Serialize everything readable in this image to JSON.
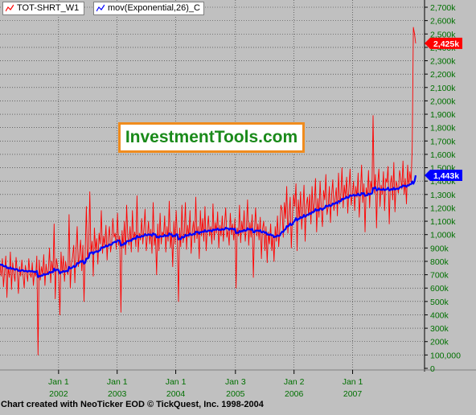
{
  "legend": [
    {
      "label": "TOT-SHRT_W1",
      "color": "#ff0000"
    },
    {
      "label": "mov(Exponential,26)_C",
      "color": "#0000ff"
    }
  ],
  "watermark": "InvestmentTools.com",
  "credit": "Chart created with NeoTicker EOD © TickQuest, Inc. 1998-2004",
  "chart_data": {
    "type": "line",
    "ylim": [
      0,
      2800000
    ],
    "y_tick_labels": [
      "0",
      "100,000",
      "200k",
      "300k",
      "400k",
      "500k",
      "600k",
      "700k",
      "800k",
      "900k",
      "1,000k",
      "1,100k",
      "1,200k",
      "1,300k",
      "1,400k",
      "1,500k",
      "1,600k",
      "1,700k",
      "1,800k",
      "1,900k",
      "2,000k",
      "2,100k",
      "2,200k",
      "2,300k",
      "2,400k",
      "2,500k",
      "2,600k",
      "2,700k"
    ],
    "y_tick_values": [
      0,
      100000,
      200000,
      300000,
      400000,
      500000,
      600000,
      700000,
      800000,
      900000,
      1000000,
      1100000,
      1200000,
      1300000,
      1400000,
      1500000,
      1600000,
      1700000,
      1800000,
      1900000,
      2000000,
      2100000,
      2200000,
      2300000,
      2400000,
      2500000,
      2600000,
      2700000
    ],
    "x_ticks": [
      {
        "month": "Jan 1",
        "year": "2002",
        "week": 52
      },
      {
        "month": "Jan 1",
        "year": "2003",
        "week": 104
      },
      {
        "month": "Jan 1",
        "year": "2004",
        "week": 156
      },
      {
        "month": "Jan 3",
        "year": "2005",
        "week": 209
      },
      {
        "month": "Jan 2",
        "year": "2006",
        "week": 261
      },
      {
        "month": "Jan 1",
        "year": "2007",
        "week": 313
      }
    ],
    "x_week_range": [
      0,
      369
    ],
    "series": [
      {
        "name": "TOT-SHRT_W1",
        "color": "#ff0000",
        "weekly_values": [
          780000,
          690000,
          820000,
          610000,
          720000,
          840000,
          530000,
          760000,
          680000,
          870000,
          590000,
          790000,
          710000,
          650000,
          830000,
          720000,
          560000,
          760000,
          690000,
          810000,
          700000,
          600000,
          770000,
          720000,
          650000,
          820000,
          710000,
          680000,
          790000,
          620000,
          730000,
          690000,
          840000,
          100000,
          810000,
          660000,
          760000,
          700000,
          850000,
          620000,
          780000,
          700000,
          730000,
          900000,
          640000,
          800000,
          710000,
          1080000,
          520000,
          820000,
          760000,
          690000,
          400000,
          870000,
          710000,
          840000,
          650000,
          800000,
          730000,
          700000,
          1150000,
          600000,
          780000,
          830000,
          920000,
          640000,
          880000,
          1060000,
          760000,
          850000,
          960000,
          730000,
          920000,
          500000,
          880000,
          1210000,
          820000,
          900000,
          1320000,
          860000,
          950000,
          690000,
          1050000,
          880000,
          970000,
          780000,
          1010000,
          930000,
          1180000,
          860000,
          990000,
          920000,
          1070000,
          810000,
          980000,
          1060000,
          870000,
          940000,
          1120000,
          980000,
          1010000,
          890000,
          1160000,
          920000,
          990000,
          420000,
          1030000,
          900000,
          1100000,
          850000,
          1220000,
          980000,
          920000,
          1060000,
          870000,
          1180000,
          960000,
          1020000,
          910000,
          1290000,
          870000,
          1010000,
          960000,
          1120000,
          930000,
          1040000,
          1190000,
          880000,
          980000,
          1100000,
          930000,
          1040000,
          860000,
          1240000,
          920000,
          1000000,
          700000,
          1080000,
          880000,
          1160000,
          930000,
          1020000,
          990000,
          1140000,
          870000,
          1060000,
          950000,
          1250000,
          900000,
          1020000,
          760000,
          1100000,
          930000,
          1180000,
          990000,
          500000,
          1050000,
          910000,
          1220000,
          940000,
          1000000,
          1240000,
          890000,
          1070000,
          980000,
          1180000,
          860000,
          1020000,
          1100000,
          940000,
          1280000,
          970000,
          1060000,
          820000,
          1180000,
          990000,
          1120000,
          950000,
          1210000,
          880000,
          1040000,
          1140000,
          990000,
          1060000,
          930000,
          1230000,
          960000,
          1090000,
          1010000,
          1170000,
          900000,
          1070000,
          990000,
          1140000,
          950000,
          1080000,
          1200000,
          980000,
          1030000,
          920000,
          1160000,
          1000000,
          1080000,
          960000,
          1120000,
          600000,
          1050000,
          990000,
          1220000,
          940000,
          1100000,
          1010000,
          1180000,
          950000,
          1060000,
          1260000,
          920000,
          1090000,
          980000,
          1150000,
          680000,
          1030000,
          1200000,
          990000,
          1080000,
          960000,
          1130000,
          820000,
          1040000,
          1100000,
          880000,
          1060000,
          790000,
          1020000,
          930000,
          1080000,
          880000,
          1000000,
          800000,
          1060000,
          950000,
          1140000,
          910000,
          1040000,
          1220000,
          1180000,
          980000,
          1240000,
          1120000,
          1360000,
          1010000,
          1160000,
          1280000,
          900000,
          1150000,
          1300000,
          1210000,
          1380000,
          880000,
          1260000,
          1120000,
          1320000,
          1040000,
          1200000,
          1370000,
          950000,
          1220000,
          1280000,
          1140000,
          1300000,
          1080000,
          1360000,
          1160000,
          1240000,
          1420000,
          1020000,
          1270000,
          1130000,
          1400000,
          1190000,
          1060000,
          1330000,
          1260000,
          1450000,
          1150000,
          1210000,
          1360000,
          1090000,
          1300000,
          1410000,
          1180000,
          1270000,
          1350000,
          1140000,
          1460000,
          1230000,
          1290000,
          1500000,
          1200000,
          1370000,
          1280000,
          1430000,
          1160000,
          1340000,
          1490000,
          1220000,
          1300000,
          1400000,
          1180000,
          1360000,
          1280000,
          1460000,
          1130000,
          1310000,
          1520000,
          1240000,
          1380000,
          1020000,
          1350000,
          1290000,
          1480000,
          1200000,
          1400000,
          1330000,
          1890000,
          1310000,
          1450000,
          1050000,
          1380000,
          1490000,
          1210000,
          1370000,
          1300000,
          1470000,
          1180000,
          1420000,
          1390000,
          1510000,
          1080000,
          1380000,
          1440000,
          1260000,
          1540000,
          1170000,
          1400000,
          1360000,
          1310000,
          1480000,
          1420000,
          1340000,
          1550000,
          1300000,
          1420000,
          1230000,
          1520000,
          1360000,
          1470000,
          1390000,
          1660000,
          2550000,
          2500000,
          2430000
        ]
      },
      {
        "name": "mov(Exponential,26)_C",
        "color": "#0000ff",
        "weekly_values": [
          780000,
          773000,
          776000,
          764000,
          761000,
          767000,
          750000,
          751000,
          746000,
          755000,
          744000,
          747000,
          744000,
          736000,
          743000,
          741000,
          728000,
          731000,
          728000,
          735000,
          733000,
          725000,
          729000,
          728000,
          722000,
          729000,
          727000,
          724000,
          729000,
          721000,
          722000,
          720000,
          729000,
          682000,
          691000,
          688000,
          694000,
          694000,
          706000,
          699000,
          705000,
          705000,
          707000,
          721000,
          715000,
          721000,
          720000,
          746000,
          730000,
          737000,
          738000,
          734000,
          709000,
          720000,
          719000,
          728000,
          722000,
          727000,
          728000,
          726000,
          758000,
          746000,
          749000,
          755000,
          767000,
          757000,
          766000,
          787000,
          785000,
          790000,
          802000,
          797000,
          806000,
          783000,
          790000,
          821000,
          821000,
          827000,
          863000,
          863000,
          869000,
          856000,
          869000,
          870000,
          877000,
          870000,
          880000,
          884000,
          905000,
          901000,
          907000,
          907000,
          919000,
          911000,
          916000,
          927000,
          923000,
          925000,
          939000,
          942000,
          947000,
          942000,
          957000,
          954000,
          957000,
          917000,
          925000,
          923000,
          936000,
          929000,
          950000,
          953000,
          950000,
          958000,
          952000,
          969000,
          969000,
          973000,
          968000,
          991000,
          981000,
          983000,
          981000,
          991000,
          986000,
          990000,
          1004000,
          995000,
          995000,
          1003000,
          998000,
          1001000,
          990000,
          1009000,
          1002000,
          1002000,
          979000,
          985000,
          977000,
          990000,
          985000,
          987000,
          987000,
          998000,
          988000,
          993000,
          990000,
          1009000,
          1001000,
          1003000,
          985000,
          993000,
          988000,
          1002000,
          1002000,
          964000,
          970000,
          965000,
          984000,
          979000,
          980000,
          999000,
          990000,
          996000,
          995000,
          1008000,
          997000,
          998000,
          1006000,
          1001000,
          1022000,
          1018000,
          1021000,
          1006000,
          1019000,
          1017000,
          1024000,
          1019000,
          1033000,
          1022000,
          1023000,
          1031000,
          1029000,
          1031000,
          1023000,
          1038000,
          1034000,
          1038000,
          1036000,
          1046000,
          1035000,
          1037000,
          1035000,
          1043000,
          1037000,
          1040000,
          1052000,
          1047000,
          1046000,
          1036000,
          1045000,
          1042000,
          1045000,
          1038000,
          1044000,
          1011000,
          1014000,
          1012000,
          1027000,
          1021000,
          1027000,
          1025000,
          1035000,
          1028000,
          1031000,
          1048000,
          1038000,
          1041000,
          1036000,
          1044000,
          1017000,
          1017000,
          1031000,
          1028000,
          1031000,
          1025000,
          1033000,
          1017000,
          1018000,
          1024000,
          1013000,
          1017000,
          1000000,
          1002000,
          997000,
          1003000,
          994000,
          995000,
          980000,
          986000,
          984000,
          995000,
          989000,
          993000,
          1010000,
          1022000,
          1019000,
          1035000,
          1041000,
          1064000,
          1060000,
          1068000,
          1084000,
          1071000,
          1077000,
          1094000,
          1103000,
          1123000,
          1105000,
          1116000,
          1117000,
          1132000,
          1125000,
          1131000,
          1148000,
          1133000,
          1140000,
          1150000,
          1149000,
          1160000,
          1154000,
          1169000,
          1168000,
          1174000,
          1192000,
          1179000,
          1185000,
          1181000,
          1196000,
          1195000,
          1185000,
          1195000,
          1199000,
          1217000,
          1212000,
          1212000,
          1222000,
          1212000,
          1219000,
          1233000,
          1229000,
          1232000,
          1241000,
          1233000,
          1250000,
          1248000,
          1250000,
          1268000,
          1263000,
          1270000,
          1271000,
          1283000,
          1274000,
          1279000,
          1295000,
          1290000,
          1291000,
          1299000,
          1290000,
          1295000,
          1294000,
          1306000,
          1293000,
          1294000,
          1311000,
          1306000,
          1311000,
          1289000,
          1294000,
          1294000,
          1307000,
          1299000,
          1306000,
          1306000,
          1349000,
          1346000,
          1354000,
          1331000,
          1335000,
          1346000,
          1336000,
          1337000,
          1334000,
          1344000,
          1332000,
          1337000,
          1339000,
          1351000,
          1331000,
          1334000,
          1341000,
          1335000,
          1350000,
          1337000,
          1342000,
          1344000,
          1341000,
          1351000,
          1357000,
          1355000,
          1368000,
          1363000,
          1367000,
          1357000,
          1369000,
          1368000,
          1376000,
          1377000,
          1397000,
          1380000,
          1400000,
          1443000
        ]
      }
    ],
    "last_value_labels": [
      {
        "series": "TOT-SHRT_W1",
        "text": "2,425k",
        "color": "#ff0000"
      },
      {
        "series": "mov(Exponential,26)_C",
        "text": "1,443k",
        "color": "#0000ff"
      }
    ],
    "grid": true,
    "grid_style": "dotted"
  }
}
